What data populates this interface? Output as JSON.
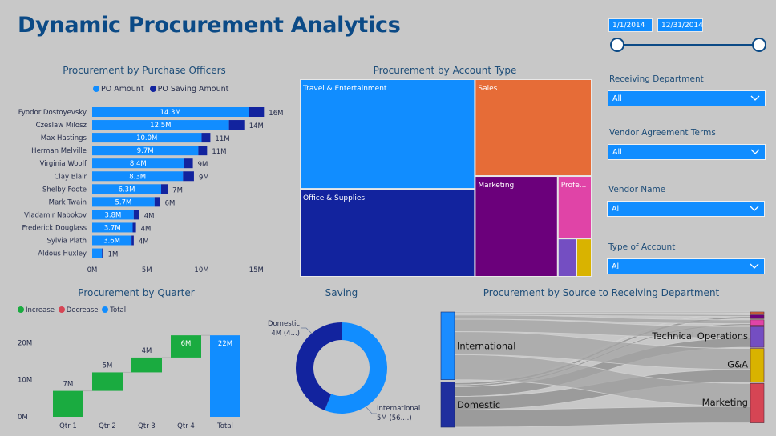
{
  "header": {
    "title": "Dynamic Procurement Analytics"
  },
  "date_slicer": {
    "start": "1/1/2014",
    "end": "12/31/2014",
    "range_fraction": [
      0,
      1
    ]
  },
  "filters": [
    {
      "label": "Receiving Department",
      "value": "All"
    },
    {
      "label": "Vendor Agreement Terms",
      "value": "All"
    },
    {
      "label": "Vendor Name",
      "value": "All"
    },
    {
      "label": "Type of Account",
      "value": "All"
    }
  ],
  "colors": {
    "primary": "#118dff",
    "dark": "#12239e",
    "increase": "#1aab40",
    "decrease": "#d64554",
    "title": "#0b4a86"
  },
  "chart_data": [
    {
      "id": "officers",
      "type": "bar",
      "orientation": "horizontal",
      "stacked": true,
      "title": "Procurement by Purchase Officers",
      "legend": [
        "PO Amount",
        "PO Saving Amount"
      ],
      "legend_position": "top-center",
      "categories": [
        "Fyodor Dostoyevsky",
        "Czeslaw Milosz",
        "Max Hastings",
        "Herman Melville",
        "Virginia Woolf",
        "Clay Blair",
        "Shelby Foote",
        "Mark Twain",
        "Vladamir Nabokov",
        "Frederick Douglass",
        "Sylvia Plath",
        "Aldous Huxley"
      ],
      "series": [
        {
          "name": "PO Amount",
          "color": "#118dff",
          "values": [
            14.3,
            12.5,
            10.0,
            9.7,
            8.4,
            8.3,
            6.3,
            5.7,
            3.8,
            3.7,
            3.6,
            0.9
          ],
          "labels": [
            "14.3M",
            "12.5M",
            "10.0M",
            "9.7M",
            "8.4M",
            "8.3M",
            "6.3M",
            "5.7M",
            "3.8M",
            "3.7M",
            "3.6M",
            ""
          ]
        },
        {
          "name": "PO Saving Amount",
          "color": "#12239e",
          "values": [
            1.4,
            1.4,
            0.8,
            0.8,
            0.8,
            1.0,
            0.6,
            0.5,
            0.5,
            0.3,
            0.2,
            0.1
          ]
        }
      ],
      "totals": [
        "16M",
        "14M",
        "11M",
        "11M",
        "9M",
        "9M",
        "7M",
        "6M",
        "4M",
        "4M",
        "4M",
        "1M"
      ],
      "xticks": [
        "0M",
        "5M",
        "10M",
        "15M"
      ],
      "xtick_values": [
        0,
        5,
        10,
        15
      ],
      "xlim": [
        0,
        15.5
      ]
    },
    {
      "id": "account_type",
      "type": "treemap",
      "title": "Procurement by Account Type",
      "items": [
        {
          "name": "Travel & Entertainment",
          "label": "Travel & Entertainment",
          "color": "#118dff"
        },
        {
          "name": "Office & Supplies",
          "label": "Office & Supplies",
          "color": "#12239e"
        },
        {
          "name": "Sales",
          "label": "Sales",
          "color": "#e66c37"
        },
        {
          "name": "Marketing",
          "label": "Marketing",
          "color": "#6b007b"
        },
        {
          "name": "Professional",
          "label": "Profe...",
          "color": "#e044a7"
        },
        {
          "name": "Other 1",
          "label": "",
          "color": "#744ec2"
        },
        {
          "name": "Other 2",
          "label": "",
          "color": "#d9b300"
        }
      ]
    },
    {
      "id": "quarter",
      "type": "waterfall",
      "title": "Procurement by Quarter",
      "legend": [
        {
          "name": "Increase",
          "color": "#1aab40"
        },
        {
          "name": "Decrease",
          "color": "#d64554"
        },
        {
          "name": "Total",
          "color": "#118dff"
        }
      ],
      "legend_position": "top-left",
      "categories": [
        "Qtr 1",
        "Qtr 2",
        "Qtr 3",
        "Qtr 4",
        "Total"
      ],
      "values": [
        7,
        5,
        4,
        6,
        22
      ],
      "labels": [
        "7M",
        "5M",
        "4M",
        "6M",
        "22M"
      ],
      "yticks": [
        "0M",
        "10M",
        "20M"
      ],
      "ytick_values": [
        0,
        10,
        20
      ],
      "ylim": [
        0,
        22
      ]
    },
    {
      "id": "saving",
      "type": "pie",
      "donut": true,
      "title": "Saving",
      "slices": [
        {
          "name": "International",
          "value": 5,
          "share": 0.56,
          "label1": "International",
          "label2": "5M (56....)",
          "color": "#118dff"
        },
        {
          "name": "Domestic",
          "value": 4,
          "share": 0.44,
          "label1": "Domestic",
          "label2": "4M (4...)",
          "color": "#12239e"
        }
      ]
    },
    {
      "id": "sankey",
      "type": "sankey",
      "title": "Procurement by Source to Receiving Department",
      "sources": [
        {
          "name": "International",
          "share": 0.6,
          "color": "#1a8cff"
        },
        {
          "name": "Domestic",
          "share": 0.4,
          "color": "#1f2f9e"
        }
      ],
      "targets": [
        {
          "name": "",
          "share": 0.015,
          "color": "#e66c37"
        },
        {
          "name": "",
          "share": 0.035,
          "color": "#6b007b"
        },
        {
          "name": "",
          "share": 0.05,
          "color": "#e044a7"
        },
        {
          "name": "Technical Operations",
          "share": 0.19,
          "color": "#744ec2"
        },
        {
          "name": "G&A",
          "share": 0.31,
          "color": "#d9b300"
        },
        {
          "name": "Marketing",
          "share": 0.36,
          "color": "#d64554"
        }
      ]
    }
  ]
}
